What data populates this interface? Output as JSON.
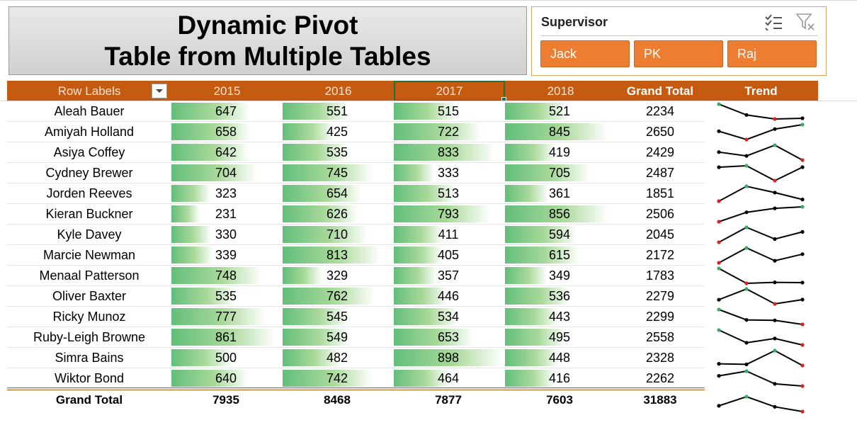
{
  "title": {
    "line1": "Dynamic Pivot",
    "line2": "Table from Multiple Tables"
  },
  "slicer": {
    "title": "Supervisor",
    "items": [
      "Jack",
      "PK",
      "Raj"
    ],
    "icons": {
      "multiselect": "multi-select-icon",
      "clear": "clear-filter-icon"
    },
    "colors": {
      "item_bg": "#ed7d31",
      "border": "#e5a25c"
    }
  },
  "pivot": {
    "headers": {
      "row_labels": "Row Labels",
      "years": [
        "2015",
        "2016",
        "2017",
        "2018"
      ],
      "grand_total": "Grand Total",
      "trend": "Trend"
    },
    "rows": [
      {
        "name": "Aleah Bauer",
        "values": [
          647,
          551,
          515,
          521
        ],
        "total": "2234"
      },
      {
        "name": "Amiyah Holland",
        "values": [
          658,
          425,
          722,
          845
        ],
        "total": "2650"
      },
      {
        "name": "Asiya Coffey",
        "values": [
          642,
          535,
          833,
          419
        ],
        "total": "2429"
      },
      {
        "name": "Cydney Brewer",
        "values": [
          704,
          745,
          333,
          705
        ],
        "total": "2487"
      },
      {
        "name": "Jorden Reeves",
        "values": [
          323,
          654,
          513,
          361
        ],
        "total": "1851"
      },
      {
        "name": "Kieran Buckner",
        "values": [
          231,
          626,
          793,
          856
        ],
        "total": "2506"
      },
      {
        "name": "Kyle Davey",
        "values": [
          330,
          710,
          411,
          594
        ],
        "total": "2045"
      },
      {
        "name": "Marcie Newman",
        "values": [
          339,
          813,
          405,
          615
        ],
        "total": "2172"
      },
      {
        "name": "Menaal Patterson",
        "values": [
          748,
          329,
          357,
          349
        ],
        "total": "1783"
      },
      {
        "name": "Oliver Baxter",
        "values": [
          535,
          762,
          446,
          536
        ],
        "total": "2279"
      },
      {
        "name": "Ricky Munoz",
        "values": [
          777,
          545,
          534,
          443
        ],
        "total": "2299"
      },
      {
        "name": "Ruby-Leigh Browne",
        "values": [
          861,
          549,
          653,
          495
        ],
        "total": "2558"
      },
      {
        "name": "Simra Bains",
        "values": [
          500,
          482,
          898,
          448
        ],
        "total": "2328"
      },
      {
        "name": "Wiktor Bond",
        "values": [
          640,
          742,
          464,
          416
        ],
        "total": "2262"
      }
    ],
    "grand_total_row": {
      "name": "Grand Total",
      "values": [
        7935,
        8468,
        7877,
        7603
      ],
      "total": "31883"
    },
    "databar_range": [
      0,
      900
    ],
    "colors": {
      "header_bg": "#c55a11",
      "bar_green": "#63be7b",
      "spark_high": "#3aaa6a",
      "spark_low": "#e02020",
      "spark_line": "#000000"
    }
  }
}
